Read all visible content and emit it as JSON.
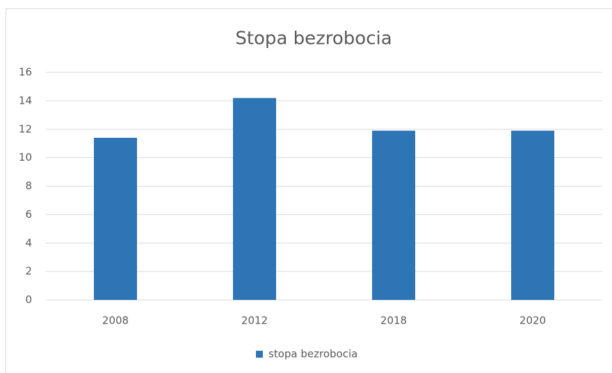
{
  "chart_data": {
    "type": "bar",
    "title": "Stopa bezrobocia",
    "categories": [
      "2008",
      "2012",
      "2018",
      "2020"
    ],
    "series": [
      {
        "name": "stopa bezrobocia",
        "color": "#2e75b6",
        "values": [
          11.4,
          14.2,
          11.9,
          11.9
        ]
      }
    ],
    "ylim": [
      0,
      16
    ],
    "yticks": [
      0,
      2,
      4,
      6,
      8,
      10,
      12,
      14,
      16
    ],
    "grid": true,
    "legend": "bottom"
  }
}
